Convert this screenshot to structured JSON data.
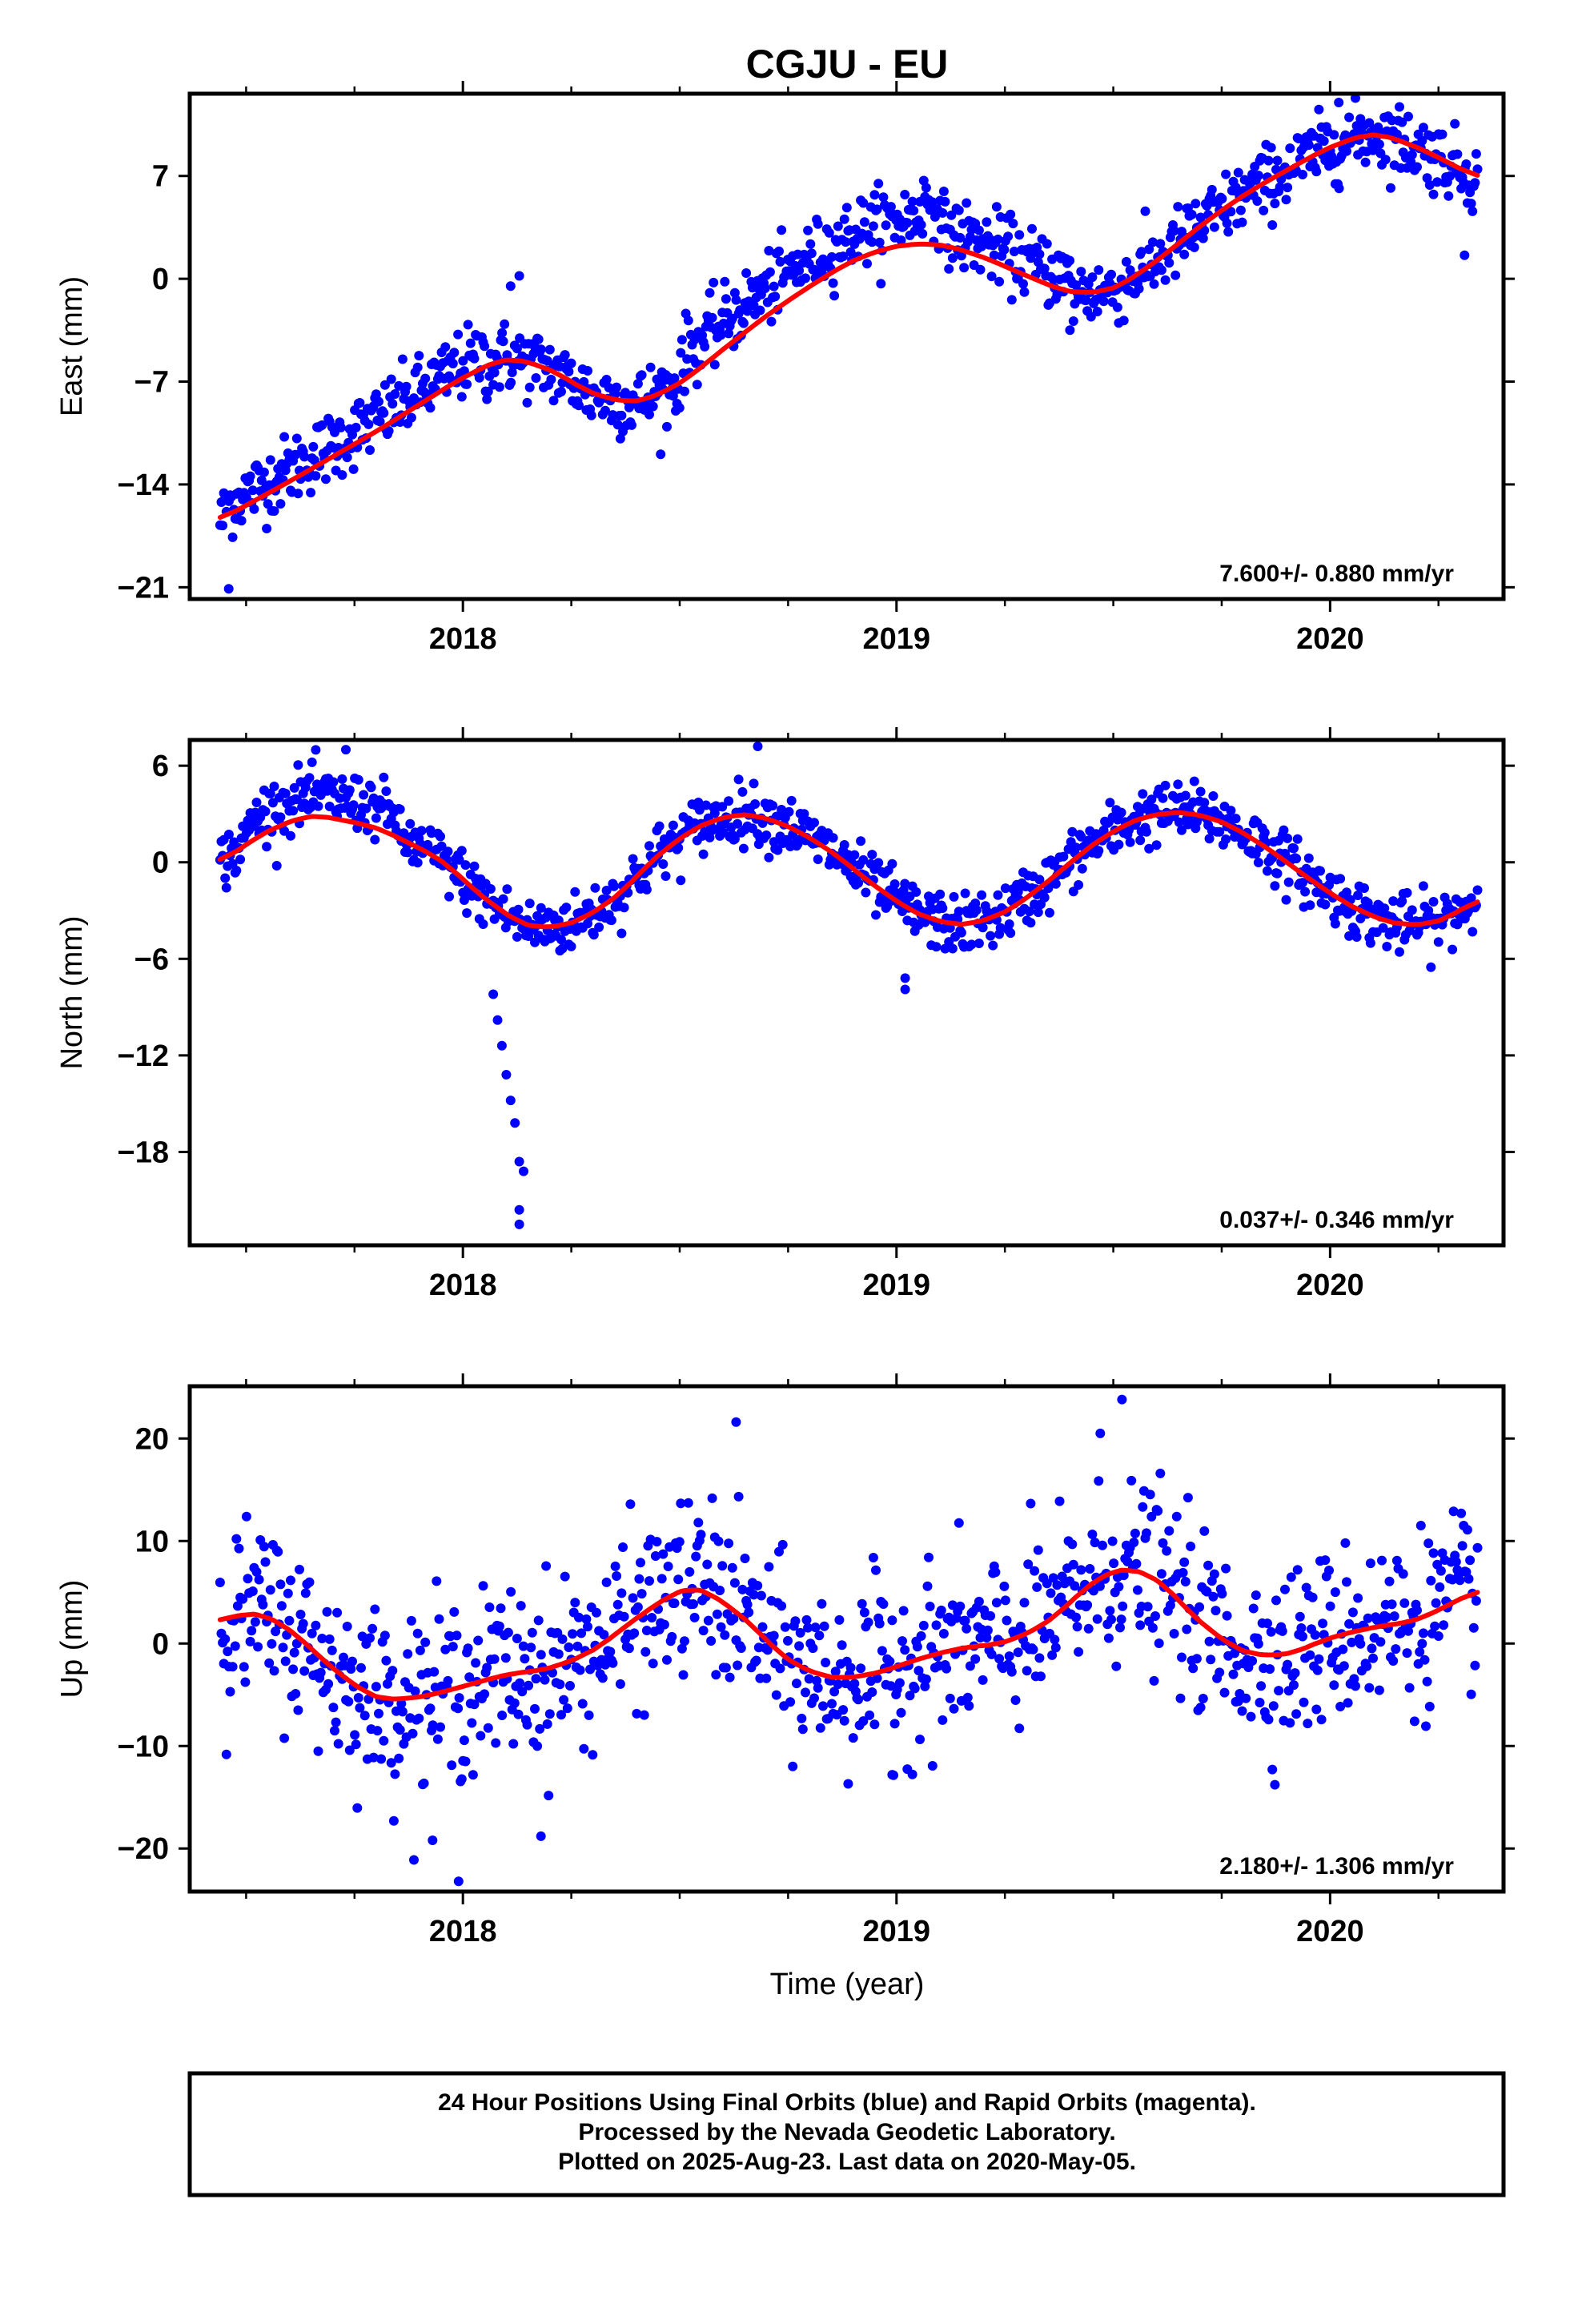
{
  "title": "CGJU - EU",
  "xlabel": "Time (year)",
  "footer": {
    "line1": "24 Hour Positions Using Final Orbits (blue) and Rapid Orbits (magenta).",
    "line2": "Processed by the Nevada Geodetic Laboratory.",
    "line3": "Plotted on 2025-Aug-23. Last data on 2020-May-05."
  },
  "colors": {
    "data_points": "#0000ff",
    "model_curve": "#ff0000",
    "axes": "#000000"
  },
  "chart_data": [
    {
      "type": "scatter",
      "name": "east",
      "ylabel": "East (mm)",
      "rate": "7.600+/- 0.880 mm/yr",
      "xlim": [
        2017.37,
        2020.4
      ],
      "ylim": [
        -21.8,
        12.6
      ],
      "yticks": [
        7,
        0,
        -7,
        -14,
        -21
      ],
      "yticklabels": [
        "7",
        "0",
        "−7",
        "−14",
        "−21"
      ],
      "xticks": [
        2018,
        2019,
        2020
      ],
      "xticklabels": [
        "2018",
        "2019",
        "2020"
      ],
      "grid": false,
      "model_curve": {
        "x": [
          2017.44,
          2017.6,
          2017.8,
          2018.0,
          2018.1,
          2018.2,
          2018.3,
          2018.4,
          2018.5,
          2018.6,
          2018.7,
          2018.8,
          2018.9,
          2019.0,
          2019.1,
          2019.2,
          2019.3,
          2019.4,
          2019.5,
          2019.6,
          2019.7,
          2019.8,
          2019.9,
          2020.0,
          2020.1,
          2020.2,
          2020.34
        ],
        "y": [
          -16.4,
          -13.8,
          -10.4,
          -6.7,
          -5.3,
          -6.1,
          -7.9,
          -8.5,
          -7.2,
          -4.8,
          -2.5,
          -0.5,
          1.3,
          2.3,
          2.4,
          1.5,
          0.2,
          -1.0,
          -0.8,
          1.2,
          3.6,
          5.7,
          7.4,
          9.0,
          10.0,
          9.0,
          6.9
        ]
      },
      "points": {
        "x_range": [
          2017.44,
          2020.34
        ],
        "count": 1000,
        "scatter_mm": 1.2,
        "outliers": [
          {
            "x": 2018.11,
            "y": -0.5
          },
          {
            "x": 2018.13,
            "y": 0.2
          },
          {
            "x": 2017.46,
            "y": -21.1
          },
          {
            "x": 2019.4,
            "y": -3.5
          },
          {
            "x": 2020.31,
            "y": 1.6
          },
          {
            "x": 2020.02,
            "y": 12.0
          }
        ]
      }
    },
    {
      "type": "scatter",
      "name": "north",
      "ylabel": "North (mm)",
      "rate": "0.037+/- 0.346 mm/yr",
      "xlim": [
        2017.37,
        2020.4
      ],
      "ylim": [
        -23.8,
        7.6
      ],
      "yticks": [
        6,
        0,
        -6,
        -12,
        -18
      ],
      "yticklabels": [
        "6",
        "0",
        "−6",
        "−12",
        "−18"
      ],
      "xticks": [
        2018,
        2019,
        2020
      ],
      "xticklabels": [
        "2018",
        "2019",
        "2020"
      ],
      "grid": false,
      "model_curve": {
        "x": [
          2017.44,
          2017.55,
          2017.65,
          2017.8,
          2017.95,
          2018.05,
          2018.15,
          2018.25,
          2018.35,
          2018.45,
          2018.55,
          2018.65,
          2018.75,
          2018.85,
          2018.95,
          2019.05,
          2019.15,
          2019.25,
          2019.35,
          2019.45,
          2019.55,
          2019.65,
          2019.75,
          2019.85,
          2019.95,
          2020.05,
          2020.15,
          2020.25,
          2020.34
        ],
        "y": [
          0.0,
          2.0,
          3.0,
          2.2,
          0.2,
          -2.3,
          -4.1,
          -3.9,
          -2.3,
          0.5,
          2.4,
          3.1,
          2.3,
          0.7,
          -1.5,
          -3.3,
          -4.0,
          -3.2,
          -1.2,
          1.1,
          2.7,
          3.2,
          2.6,
          1.0,
          -1.0,
          -2.8,
          -3.9,
          -3.8,
          -2.3
        ]
      },
      "points": {
        "x_range": [
          2017.44,
          2020.34
        ],
        "count": 1000,
        "scatter_mm": 0.9,
        "outliers": [
          {
            "x": 2018.13,
            "y": -22.5
          },
          {
            "x": 2018.13,
            "y": -21.6
          },
          {
            "x": 2018.14,
            "y": -19.2
          },
          {
            "x": 2018.13,
            "y": -18.6
          },
          {
            "x": 2018.12,
            "y": -16.2
          },
          {
            "x": 2018.11,
            "y": -14.8
          },
          {
            "x": 2018.1,
            "y": -13.2
          },
          {
            "x": 2018.09,
            "y": -11.4
          },
          {
            "x": 2018.08,
            "y": -9.8
          },
          {
            "x": 2018.07,
            "y": -8.2
          },
          {
            "x": 2019.02,
            "y": -7.9
          },
          {
            "x": 2019.02,
            "y": -7.2
          },
          {
            "x": 2018.68,
            "y": 7.2
          },
          {
            "x": 2017.73,
            "y": 7.0
          }
        ]
      }
    },
    {
      "type": "scatter",
      "name": "up",
      "ylabel": "Up (mm)",
      "rate": "2.180+/- 1.306 mm/yr",
      "xlim": [
        2017.37,
        2020.4
      ],
      "ylim": [
        -24.2,
        25.1
      ],
      "yticks": [
        20,
        10,
        0,
        -10,
        -20
      ],
      "yticklabels": [
        "20",
        "10",
        "0",
        "−10",
        "−20"
      ],
      "xticks": [
        2018,
        2019,
        2020
      ],
      "xticklabels": [
        "2018",
        "2019",
        "2020"
      ],
      "grid": false,
      "model_curve": {
        "x": [
          2017.44,
          2017.52,
          2017.6,
          2017.7,
          2017.8,
          2017.9,
          2018.0,
          2018.1,
          2018.2,
          2018.3,
          2018.4,
          2018.5,
          2018.55,
          2018.65,
          2018.75,
          2018.85,
          2018.95,
          2019.05,
          2019.15,
          2019.25,
          2019.35,
          2019.45,
          2019.52,
          2019.6,
          2019.7,
          2019.8,
          2019.9,
          2020.0,
          2020.1,
          2020.2,
          2020.34
        ],
        "y": [
          2.2,
          3.2,
          1.5,
          -2.5,
          -5.5,
          -5.3,
          -4.2,
          -3.0,
          -2.5,
          -0.8,
          2.5,
          5.3,
          5.5,
          2.5,
          -1.8,
          -3.5,
          -3.0,
          -1.5,
          -0.4,
          0.0,
          2.0,
          6.0,
          7.5,
          6.5,
          2.0,
          -1.0,
          -1.2,
          0.6,
          1.6,
          2.2,
          5.2
        ]
      },
      "points": {
        "x_range": [
          2017.44,
          2020.34
        ],
        "count": 1000,
        "scatter_mm": 4.2,
        "outliers": [
          {
            "x": 2017.99,
            "y": -23.2
          },
          {
            "x": 2017.93,
            "y": -19.2
          },
          {
            "x": 2018.18,
            "y": -18.8
          },
          {
            "x": 2019.52,
            "y": 23.8
          },
          {
            "x": 2019.47,
            "y": 20.5
          },
          {
            "x": 2018.63,
            "y": 21.6
          },
          {
            "x": 2018.99,
            "y": -12.8
          }
        ]
      }
    }
  ]
}
